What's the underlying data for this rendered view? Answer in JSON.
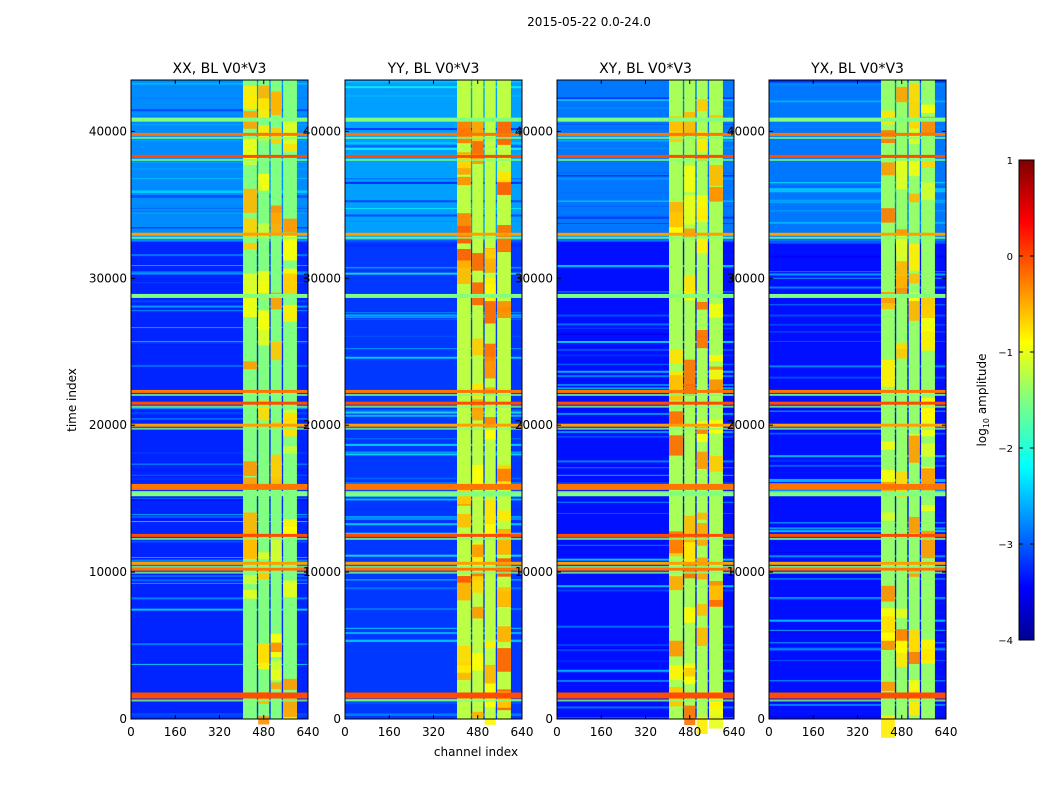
{
  "figure": {
    "suptitle": "2015-05-22 0.0-24.0",
    "xlabel": "channel index",
    "ylabel": "time index",
    "colorbar": {
      "label": "log10 amplitude",
      "label_prefix": "log",
      "label_sub": "10",
      "label_suffix": " amplitude",
      "ticks": [
        "1",
        "0",
        "−1",
        "−2",
        "−3",
        "−4"
      ],
      "range": [
        -4,
        1
      ],
      "colormap": "jet"
    }
  },
  "chart_data": [
    {
      "type": "heatmap",
      "title": "XX, BL V0*V3",
      "xlabel": "channel index",
      "ylabel": "time index",
      "xlim": [
        0,
        640
      ],
      "ylim": [
        0,
        43500
      ],
      "xticks": [
        "0",
        "160",
        "320",
        "480",
        "640"
      ],
      "yticks": [
        "0",
        "10000",
        "20000",
        "30000",
        "40000"
      ],
      "colorscale_range": [
        -4,
        1
      ],
      "bands_channels": [
        [
          405,
          455
        ],
        [
          460,
          500
        ],
        [
          505,
          545
        ],
        [
          550,
          600
        ]
      ],
      "band_level": -1.5,
      "background_level": -3.2,
      "rfi_time_rows": [
        1600,
        10200,
        10600,
        12500,
        15800,
        20000,
        21500,
        22300,
        33000,
        38300,
        39800
      ],
      "high_noise_time_range": [
        32500,
        43500
      ]
    },
    {
      "type": "heatmap",
      "title": "YY, BL V0*V3",
      "xlabel": "",
      "ylabel": "",
      "xlim": [
        0,
        640
      ],
      "ylim": [
        0,
        43500
      ],
      "xticks": [
        "0",
        "160",
        "320",
        "480",
        "640"
      ],
      "yticks": [
        "0",
        "10000",
        "20000",
        "30000",
        "40000"
      ],
      "colorscale_range": [
        -4,
        1
      ],
      "bands_channels": [
        [
          405,
          455
        ],
        [
          460,
          500
        ],
        [
          505,
          545
        ],
        [
          550,
          600
        ]
      ],
      "band_level": -1.2,
      "background_level": -3.1,
      "rfi_time_rows": [
        1600,
        10200,
        10600,
        12500,
        15800,
        20000,
        21500,
        22300,
        33000,
        38300,
        39800
      ],
      "high_noise_time_range": [
        32500,
        43500
      ]
    },
    {
      "type": "heatmap",
      "title": "XY, BL V0*V3",
      "xlabel": "",
      "ylabel": "",
      "xlim": [
        0,
        640
      ],
      "ylim": [
        0,
        43500
      ],
      "xticks": [
        "0",
        "160",
        "320",
        "480",
        "640"
      ],
      "yticks": [
        "0",
        "10000",
        "20000",
        "30000",
        "40000"
      ],
      "colorscale_range": [
        -4,
        1
      ],
      "bands_channels": [
        [
          405,
          455
        ],
        [
          460,
          500
        ],
        [
          505,
          545
        ],
        [
          550,
          600
        ]
      ],
      "band_level": -1.3,
      "background_level": -3.3,
      "rfi_time_rows": [
        1600,
        10200,
        10600,
        12500,
        15800,
        20000,
        21500,
        22300,
        33000,
        38300,
        39800
      ],
      "high_noise_time_range": [
        32500,
        43500
      ]
    },
    {
      "type": "heatmap",
      "title": "YX, BL V0*V3",
      "xlabel": "",
      "ylabel": "",
      "xlim": [
        0,
        640
      ],
      "ylim": [
        0,
        43500
      ],
      "xticks": [
        "0",
        "160",
        "320",
        "480",
        "640"
      ],
      "yticks": [
        "0",
        "10000",
        "20000",
        "30000",
        "40000"
      ],
      "colorscale_range": [
        -4,
        1
      ],
      "bands_channels": [
        [
          405,
          455
        ],
        [
          460,
          500
        ],
        [
          505,
          545
        ],
        [
          550,
          600
        ]
      ],
      "band_level": -1.4,
      "background_level": -3.3,
      "rfi_time_rows": [
        1600,
        10200,
        10600,
        12500,
        15800,
        20000,
        21500,
        22300,
        33000,
        38300,
        39800
      ],
      "high_noise_time_range": [
        32500,
        43500
      ]
    }
  ]
}
